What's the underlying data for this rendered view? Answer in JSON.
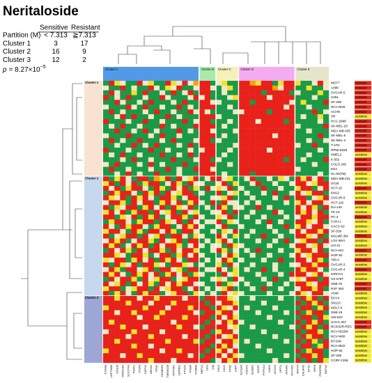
{
  "chart_data": {
    "type": "heatmap",
    "title": "Neritaloside",
    "summary": {
      "header": [
        "Sensitive",
        "Resistant"
      ],
      "partition": [
        "Partition (M)",
        "< 7.313",
        "≧7.313"
      ],
      "rows": [
        [
          "Cluster 1",
          3,
          17
        ],
        [
          "Cluster 2",
          16,
          9
        ],
        [
          "Cluster 3",
          12,
          2
        ]
      ],
      "p_label": "p",
      "p_text": "= 8.27×10",
      "p_exp": "−5"
    },
    "level_colors": {
      "G": "#1a9a46",
      "B": "#efe9c6",
      "Y": "#f1e12a",
      "O": "#f5a300",
      "R": "#e8221b"
    },
    "status_colors": {
      "sensitive": "#f3e92b",
      "resistant": "#e02a1c"
    },
    "col_clusters": [
      {
        "name": "Cluster A",
        "color": "#3f8fe4",
        "genes": [
          "PTPRB",
          "LAPTM4B",
          "CD109",
          "FAM213A",
          "SLC27A3",
          "PSAT1",
          "ITGA3",
          "CAPN2",
          "ABCA1",
          "TPM1",
          "HOMER3",
          "TMEM158",
          "ANTXR1",
          "LEPRE1",
          "PTGS2",
          "ITGB5",
          "PSMB8"
        ]
      },
      {
        "name": "Cluster B",
        "color": "#9fe8a4",
        "genes": [
          "SRPX2",
          "TFPI",
          "VIM"
        ]
      },
      {
        "name": "Cluster C",
        "color": "#f4efb4",
        "genes": [
          "CAV2",
          "CAV1",
          "TPM2",
          "LHFP"
        ]
      },
      {
        "name": "Cluster D",
        "color": "#f2a3f0",
        "genes": [
          "SLC2A3",
          "CDCP1",
          "S100A2",
          "MYOF",
          "PTPN14",
          "LMO2",
          "ACSS2",
          "OPTN",
          "AHNAK",
          "ANTXR2"
        ]
      },
      {
        "name": "Cluster E",
        "color": "#e2e2c4",
        "genes": [
          "RNF24",
          "CALHM2",
          "ETS1",
          "KRT8",
          "PDGFRB",
          "RAP1A"
        ]
      }
    ],
    "row_clusters": [
      {
        "name": "Cluster 1",
        "color": "#f8e3d3",
        "rows": [
          {
            "name": "MCF7",
            "status": "resistant",
            "levels": "GRYBGGRBYGGRYBRBORRGBYGGRROYRRGYRRYGGBRB"
          },
          {
            "name": "A498",
            "status": "resistant",
            "levels": "BGGRGBGGRBGYBRGGBRRBGBYGRRRRRROBRRGGYGGB"
          },
          {
            "name": "OVCAR-5",
            "status": "resistant",
            "levels": "GRBGGYGRGGBGRGBRGRRGGBGGRRRRGRRRRGBGGGYG"
          },
          {
            "name": "U251",
            "status": "resistant",
            "levels": "RGBGRGGBGGRBGGGBRBRGGGBYRRRRRBRRRRGGGBGG"
          },
          {
            "name": "SF-295",
            "status": "resistant",
            "levels": "GGRBGGBGRGGGBGRGGRRBBGGGRRGRRRRRRBGYGGGR"
          },
          {
            "name": "NCI-H226",
            "status": "resistant",
            "levels": "BGGGRBGRGGBGGRGBGRRRGGBGRRRRRRRRBRGGBGGG"
          },
          {
            "name": "ACHN",
            "status": "resistant",
            "levels": "GRGBGGGBGRGGBGGRBRBGGGGBBRRRRGRRRRGGGRGB"
          },
          {
            "name": "SR",
            "status": "sensitive",
            "levels": "GGBRGRGGBGGRGBGGGRRRBGGGRRRRRRRRRRGBGGYG"
          },
          {
            "name": "HCC-2998",
            "status": "resistant",
            "levels": "RGGGBGGRGGBGGGRGBRRGGGBGRRRBRRRRGRGGGGBG"
          },
          {
            "name": "SK-MEL-28",
            "status": "resistant",
            "levels": "GBGRGGBGGGRGBGGGRRRRGBGGRRRRRRRRRRBGGGGR"
          },
          {
            "name": "MDA-MB-435",
            "status": "resistant",
            "levels": "GGRGGBGRGBGGGRGBGRRBGGGBRRRRRRRRRRGGBGGG"
          },
          {
            "name": "SK-MEL-5",
            "status": "resistant",
            "levels": "BGGGRGGGBGRGGBGGGRRRGBGGRRRRRRBRRRGGGGRG"
          },
          {
            "name": "SK-MEL-2",
            "status": "resistant",
            "levels": "GRGBGGRGGGBGRGGGBRRGBGGGRRRRRRRRRRGGBGGB"
          },
          {
            "name": "T-47D",
            "status": "resistant",
            "levels": "GGBGGRGBGRGGGBGRGRRRGGGBRRRRRRRRRRBGGRGG"
          },
          {
            "name": "RPMI-8226",
            "status": "resistant",
            "levels": "RGGGBGGGRGGBGGGBGBRRGGBGRRRRRBRRRRGGGGBG"
          },
          {
            "name": "HMEL2",
            "status": "sensitive",
            "levels": "GBGRGGBGGGRGGBGRGRRRGBGGRRRRRRRRRRGGBGGG"
          },
          {
            "name": "K-562",
            "status": "resistant",
            "levels": "GGGBGRGGBGGGRGGGBRRGBGGGRRRRRRRRGRGBGGGR"
          },
          {
            "name": "COLO 205",
            "status": "resistant",
            "levels": "BGRGGGBGRGBGGGRGGRRRGGBGRRRRRRRRRRGGGBGG"
          },
          {
            "name": "M14",
            "status": "resistant",
            "levels": "GRGGBGGGBGGRGBGGRRRBGGGGRRRRRRRRRRBGGGGG"
          },
          {
            "name": "HL-60(TB)",
            "status": "sensitive",
            "levels": "GGBGRGBGGRGGGBGGGRRRGBGGRRGRRRRRRRGGGGBG"
          }
        ]
      },
      {
        "name": "Cluster 2",
        "color": "#c5d8ee",
        "rows": [
          {
            "name": "MDA-MB-231",
            "status": "sensitive",
            "levels": "RGYRBGRRGOYRGRBYRGBRRBYGGBRGGBGYBGRYRBRG"
          },
          {
            "name": "HT29",
            "status": "sensitive",
            "levels": "YRGRBRGYRRGBRYGRBBGGBRGYGGBRGGBGGBRRBYRR"
          },
          {
            "name": "HCT-15",
            "status": "resistant",
            "levels": "RBRGYRRBGRYGRBRGYGRBYBRGBGGGRGGBGGYRRGBR"
          },
          {
            "name": "KM12",
            "status": "sensitive",
            "levels": "GRYRRBGRYRGRBYRRGBGGRGBYGBGGBGRGGBRBYRRG"
          },
          {
            "name": "OVCAR-8",
            "status": "sensitive",
            "levels": "RYBRGRYRBGRRYGBRRGGBBYRGGGBGGGBGRGRRGBYR"
          },
          {
            "name": "HCT-116",
            "status": "resistant",
            "levels": "BRRYGRBRRGYRBRGYRBGRGRBBGBGBGGGGBGYRBRRB"
          },
          {
            "name": "DU-145",
            "status": "sensitive",
            "levels": "RGYBRRGYRBRGRYBRGGBGRYGBBGGRGBGGGGRBRYGR"
          },
          {
            "name": "TK-10",
            "status": "sensitive",
            "levels": "YRBRGYRRGRBYRGRBYGGBBRGRGGBGGGRBGGRYRBRG"
          },
          {
            "name": "PC-3",
            "status": "resistant",
            "levels": "RRGYBRGRYRGBRRYGRBGGYBRGGBGGBGGGBGBRRYRR"
          },
          {
            "name": "CAKI-1",
            "status": "sensitive",
            "levels": "GYRRBGYRRGRYBRGRBGBBRGYBGGGBGRGBGGRRYBRG"
          },
          {
            "name": "UACC-62",
            "status": "sensitive",
            "levels": "RBGRYRRBGYRRGBRYRBGGBRGGBGGGGBGGRGYRBRRB"
          },
          {
            "name": "SF-539",
            "status": "sensitive",
            "levels": "YRRBGRYGRRBRYGRRBGGBGYBRGGBGGGBGGBRBRRYR"
          },
          {
            "name": "MALME-3M",
            "status": "resistant",
            "levels": "RGBYRRGRBYRGRRBGYBGGRBGYGBGGRGGBGGRRYBRG"
          },
          {
            "name": "LOX IMVI",
            "status": "sensitive",
            "levels": "BRYRGBRRYGRBYRGRRGBGYRBGGGGBGGBGRGBYRRGR"
          },
          {
            "name": "UO-31",
            "status": "sensitive",
            "levels": "RYRGBRYRGRBRRYGBRBGBBGRYBGGGGBGGGBRRBYRB"
          },
          {
            "name": "NCI-H23",
            "status": "resistant",
            "levels": "GRBRYGRBRRYGRBRRYGGBRYGBGBGRGGGBGGYRRBRG"
          },
          {
            "name": "HOP-92",
            "status": "sensitive",
            "levels": "RRYBGRRYGBRRGYRBRBGGGBRYGGBGGBGGGBRBYRRR"
          },
          {
            "name": "786-0",
            "status": "resistant",
            "levels": "YBRRGYRBRGRYRBGRRGBGBRYGBGGGBGGRGGRRBRYG"
          },
          {
            "name": "OVCAR-3",
            "status": "sensitive",
            "levels": "RGRYBRGRRYBGRRYBGBGGYGRBGGBGGGBGGBBRRYRR"
          },
          {
            "name": "OVCAR-4",
            "status": "resistant",
            "levels": "BRYGRRBYRGRRBYGRRGBBRBGYGBGGRGBGGGRYRRBG"
          },
          {
            "name": "IGROV1",
            "status": "sensitive",
            "levels": "RYRBGRYRBRGYRBRGYBGGGRBYGGGBGGGBGRRRBYRB"
          },
          {
            "name": "HS 578T",
            "status": "sensitive",
            "levels": "GRBRRYGRBYRRGBYRRGGBYBGRBGGGBGRGGBYBRRGR"
          },
          {
            "name": "SNB-75",
            "status": "resistant",
            "levels": "RBYRGRBRYGRBRYRRBBGGRGYBGBGGGBGGBGRRYBRR"
          },
          {
            "name": "RXF 393",
            "status": "resistant",
            "levels": "YRRGBYRRGRBYRRGBRGBGBYRGGGBGRGGBGGBRRYRG"
          },
          {
            "name": "A549",
            "status": "sensitive",
            "levels": "RGYRBGRYRRGBYRRGYBGBGRBYBGGGGBGGGBRYBRRB"
          }
        ]
      },
      {
        "name": "Cluster 3",
        "color": "#9ea6d6",
        "rows": [
          {
            "name": "EKVX",
            "status": "sensitive",
            "levels": "RRYRRRBRRYRRRRBRRGRRRRYBGGBGGGGBGGGRYRGR"
          },
          {
            "name": "SN12C",
            "status": "sensitive",
            "levels": "RRRRYRRRBRRRYRRRRRGRBRRYGGGGBGGGGGRGRYRG"
          },
          {
            "name": "MOLT-4",
            "status": "sensitive",
            "levels": "YRRRRRRYRRRBRRRYRRRGRYBRGBGGGGBGGGGRRGYR"
          },
          {
            "name": "SNB-19",
            "status": "sensitive",
            "levels": "RRBRRYRRRRYRRRRRBGRRYRRBGGGBGGGGBGRGYRRG"
          },
          {
            "name": "SW-620",
            "status": "sensitive",
            "levels": "RRRRRRBRRYRRRRYRRRRGRBRYGGGGGBGGGGGRRGRY"
          },
          {
            "name": "UACC-257",
            "status": "resistant",
            "levels": "RYRRRRRRRRRRBRRRRRGRBRYRBGGGGGGBGGRGRYRG"
          },
          {
            "name": "NCI/ADR-RES",
            "status": "resistant",
            "levels": "RRRYRRRBRRRRRYRRBGRRRRBYGGBGGGGGGBGRYRGR"
          },
          {
            "name": "NCI-H322M",
            "status": "sensitive",
            "levels": "BRRRRYRRRRBRRRRRRRRGYRRBGGGGBGGGGGRGRRYG"
          },
          {
            "name": "NCI-H460",
            "status": "sensitive",
            "levels": "RRRRBRRRYRRRRRBRRRGRRBYRGGGGGGBGGGGRYRRG"
          },
          {
            "name": "BT-549",
            "status": "sensitive",
            "levels": "RRYRRRRRRRRYRRRRYGRRBRRYGBGGGGGGBGRGRYGR"
          },
          {
            "name": "NCI-H522",
            "status": "sensitive",
            "levels": "RRRRRYRRBRRRRRRRRRRGRYRBGGGBGGGGGGGRRGYR"
          },
          {
            "name": "HOP-62",
            "status": "sensitive",
            "levels": "YRRRRRRRRRBRRYRRRRGRYRBRGGGGGBGGGGRGYRRG"
          },
          {
            "name": "SF-268",
            "status": "sensitive",
            "levels": "RRRBRRYRRRRRRRRBRGRRRBRYBGGGGGGGBGGRRYRG"
          },
          {
            "name": "CCRF-CEM",
            "status": "sensitive",
            "levels": "RRRRRRRRYRRRBRRRRRRGBRYRGGGGGGBGGGRGRGRY"
          }
        ]
      }
    ]
  }
}
